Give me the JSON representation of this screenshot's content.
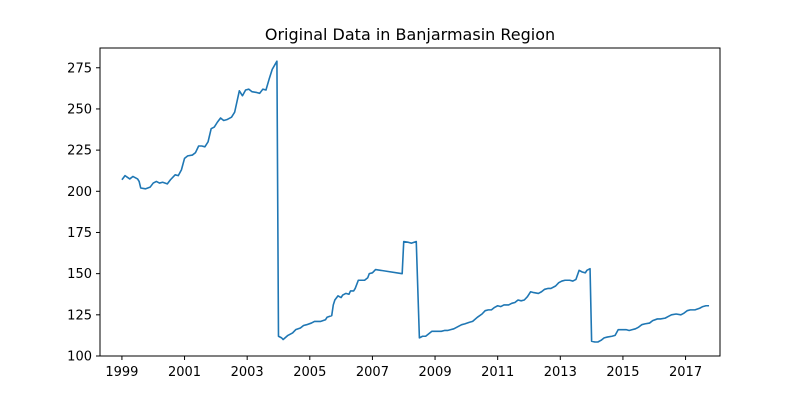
{
  "chart_data": {
    "type": "line",
    "title": "Original Data in Banjarmasin Region",
    "xlabel": "",
    "ylabel": "",
    "xlim": [
      1998.3,
      2018.1
    ],
    "ylim": [
      100,
      287
    ],
    "x_ticks": [
      1999,
      2001,
      2003,
      2005,
      2007,
      2009,
      2011,
      2013,
      2015,
      2017
    ],
    "x_tick_labels": [
      "1999",
      "2001",
      "2003",
      "2005",
      "2007",
      "2009",
      "2011",
      "2013",
      "2015",
      "2017"
    ],
    "y_ticks": [
      100,
      125,
      150,
      175,
      200,
      225,
      250,
      275
    ],
    "y_tick_labels": [
      "100",
      "125",
      "150",
      "175",
      "200",
      "225",
      "250",
      "275"
    ],
    "grid": false,
    "series": [
      {
        "name": "",
        "color": "#1f77b4",
        "points": [
          [
            1999.0,
            207
          ],
          [
            1999.1,
            209.5
          ],
          [
            1999.25,
            207.5
          ],
          [
            1999.35,
            209
          ],
          [
            1999.5,
            207.5
          ],
          [
            1999.55,
            206
          ],
          [
            1999.6,
            202
          ],
          [
            1999.75,
            201.5
          ],
          [
            1999.9,
            202.5
          ],
          [
            2000.0,
            205
          ],
          [
            2000.1,
            206
          ],
          [
            2000.2,
            205
          ],
          [
            2000.3,
            205.5
          ],
          [
            2000.45,
            204.5
          ],
          [
            2000.55,
            207
          ],
          [
            2000.7,
            210
          ],
          [
            2000.8,
            209.5
          ],
          [
            2000.9,
            213
          ],
          [
            2001.0,
            220
          ],
          [
            2001.1,
            221.5
          ],
          [
            2001.25,
            222
          ],
          [
            2001.35,
            223.5
          ],
          [
            2001.45,
            227.5
          ],
          [
            2001.55,
            227.5
          ],
          [
            2001.65,
            227
          ],
          [
            2001.75,
            230
          ],
          [
            2001.85,
            238
          ],
          [
            2001.95,
            239
          ],
          [
            2002.05,
            242
          ],
          [
            2002.15,
            244.5
          ],
          [
            2002.25,
            243
          ],
          [
            2002.35,
            243.5
          ],
          [
            2002.5,
            245
          ],
          [
            2002.6,
            248
          ],
          [
            2002.75,
            261
          ],
          [
            2002.85,
            258
          ],
          [
            2002.95,
            261.5
          ],
          [
            2003.05,
            262
          ],
          [
            2003.15,
            260.5
          ],
          [
            2003.3,
            260
          ],
          [
            2003.4,
            259.5
          ],
          [
            2003.5,
            262
          ],
          [
            2003.6,
            261.5
          ],
          [
            2003.7,
            268
          ],
          [
            2003.8,
            274
          ],
          [
            2003.95,
            279
          ],
          [
            2004.0,
            112
          ],
          [
            2004.1,
            111
          ],
          [
            2004.15,
            110
          ],
          [
            2004.3,
            112.5
          ],
          [
            2004.45,
            114
          ],
          [
            2004.55,
            116
          ],
          [
            2004.7,
            117
          ],
          [
            2004.8,
            118.5
          ],
          [
            2004.9,
            119
          ],
          [
            2005.05,
            120
          ],
          [
            2005.15,
            121
          ],
          [
            2005.35,
            121
          ],
          [
            2005.5,
            122
          ],
          [
            2005.55,
            123.5
          ],
          [
            2005.7,
            124.5
          ],
          [
            2005.75,
            131
          ],
          [
            2005.8,
            134
          ],
          [
            2005.9,
            136.5
          ],
          [
            2006.0,
            135.5
          ],
          [
            2006.05,
            137
          ],
          [
            2006.15,
            138
          ],
          [
            2006.25,
            137.5
          ],
          [
            2006.3,
            139.5
          ],
          [
            2006.4,
            139.5
          ],
          [
            2006.45,
            141
          ],
          [
            2006.55,
            146
          ],
          [
            2006.75,
            146
          ],
          [
            2006.85,
            147.5
          ],
          [
            2006.9,
            150
          ],
          [
            2007.0,
            150.5
          ],
          [
            2007.1,
            152.5
          ],
          [
            2007.95,
            150
          ],
          [
            2008.0,
            169.5
          ],
          [
            2008.15,
            169
          ],
          [
            2008.25,
            168.5
          ],
          [
            2008.4,
            169.5
          ],
          [
            2008.5,
            111
          ],
          [
            2008.6,
            112
          ],
          [
            2008.7,
            112
          ],
          [
            2008.8,
            113.5
          ],
          [
            2008.9,
            115
          ],
          [
            2009.1,
            115
          ],
          [
            2009.2,
            115
          ],
          [
            2009.3,
            115.5
          ],
          [
            2009.4,
            115.5
          ],
          [
            2009.5,
            116
          ],
          [
            2009.6,
            116.5
          ],
          [
            2009.75,
            118
          ],
          [
            2009.85,
            119
          ],
          [
            2009.95,
            119.5
          ],
          [
            2010.1,
            120.5
          ],
          [
            2010.2,
            121
          ],
          [
            2010.35,
            123.5
          ],
          [
            2010.5,
            125.5
          ],
          [
            2010.6,
            127.5
          ],
          [
            2010.7,
            128
          ],
          [
            2010.8,
            128
          ],
          [
            2010.9,
            129.5
          ],
          [
            2011.0,
            130.5
          ],
          [
            2011.1,
            130
          ],
          [
            2011.2,
            131
          ],
          [
            2011.35,
            131
          ],
          [
            2011.45,
            132
          ],
          [
            2011.55,
            132.5
          ],
          [
            2011.65,
            134
          ],
          [
            2011.75,
            133.5
          ],
          [
            2011.85,
            134
          ],
          [
            2011.95,
            136
          ],
          [
            2012.05,
            139
          ],
          [
            2012.15,
            138.5
          ],
          [
            2012.3,
            138
          ],
          [
            2012.4,
            139
          ],
          [
            2012.5,
            140.5
          ],
          [
            2012.6,
            141
          ],
          [
            2012.7,
            141
          ],
          [
            2012.85,
            142.5
          ],
          [
            2012.95,
            144.5
          ],
          [
            2013.05,
            145.5
          ],
          [
            2013.15,
            146
          ],
          [
            2013.3,
            146
          ],
          [
            2013.4,
            145.5
          ],
          [
            2013.5,
            146.5
          ],
          [
            2013.6,
            152
          ],
          [
            2013.7,
            151
          ],
          [
            2013.8,
            150.5
          ],
          [
            2013.85,
            152
          ],
          [
            2013.95,
            153
          ],
          [
            2014.0,
            109
          ],
          [
            2014.1,
            108.5
          ],
          [
            2014.2,
            108.5
          ],
          [
            2014.3,
            109.5
          ],
          [
            2014.4,
            111
          ],
          [
            2014.5,
            111.5
          ],
          [
            2014.65,
            112
          ],
          [
            2014.75,
            112.5
          ],
          [
            2014.85,
            116
          ],
          [
            2015.0,
            116
          ],
          [
            2015.1,
            116
          ],
          [
            2015.2,
            115.5
          ],
          [
            2015.3,
            116
          ],
          [
            2015.4,
            116.5
          ],
          [
            2015.5,
            117.5
          ],
          [
            2015.6,
            119
          ],
          [
            2015.7,
            119.5
          ],
          [
            2015.85,
            120
          ],
          [
            2015.95,
            121.5
          ],
          [
            2016.1,
            122.5
          ],
          [
            2016.2,
            122.5
          ],
          [
            2016.35,
            123
          ],
          [
            2016.45,
            124
          ],
          [
            2016.55,
            125
          ],
          [
            2016.7,
            125.5
          ],
          [
            2016.85,
            125
          ],
          [
            2016.95,
            126
          ],
          [
            2017.05,
            127.5
          ],
          [
            2017.15,
            128
          ],
          [
            2017.3,
            128
          ],
          [
            2017.45,
            129
          ],
          [
            2017.55,
            130
          ],
          [
            2017.65,
            130.5
          ],
          [
            2017.75,
            130.5
          ]
        ]
      }
    ]
  }
}
